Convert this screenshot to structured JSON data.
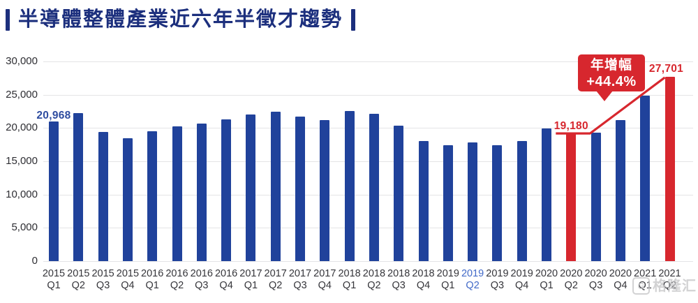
{
  "header": {
    "title": "半導體整體產業近六年半徵才趨勢"
  },
  "chart_data": {
    "type": "bar",
    "title": "半導體整體產業近六年半徵才趨勢",
    "categories": [
      "2015 Q1",
      "2015 Q2",
      "2015 Q3",
      "2015 Q4",
      "2016 Q1",
      "2016 Q2",
      "2016 Q3",
      "2016 Q4",
      "2017 Q1",
      "2017 Q2",
      "2017 Q3",
      "2017 Q4",
      "2018 Q1",
      "2018 Q2",
      "2018 Q3",
      "2018 Q4",
      "2019 Q1",
      "2019 Q2",
      "2019 Q3",
      "2019 Q4",
      "2020 Q1",
      "2020 Q2",
      "2020 Q3",
      "2020 Q4",
      "2021 Q1",
      "2021 Q2"
    ],
    "values": [
      20968,
      22200,
      19450,
      18500,
      19550,
      20250,
      20700,
      21300,
      22000,
      22500,
      21700,
      21200,
      22600,
      22100,
      20350,
      18000,
      17450,
      17850,
      17450,
      18050,
      19950,
      19180,
      19250,
      21200,
      24850,
      27701
    ],
    "red_bar_indices": [
      21,
      25
    ],
    "highlighted_xtick_index": 17,
    "ylim": [
      0,
      30000
    ],
    "ytick_step": 5000,
    "ytick_labels": [
      "0",
      "5,000",
      "10,000",
      "15,000",
      "20,000",
      "25,000",
      "30,000"
    ],
    "grid": "horizontal",
    "xlabel": "",
    "ylabel": "",
    "data_labels": [
      {
        "index": 0,
        "text": "20,968",
        "color": "#2F4DA0",
        "dy": 1
      },
      {
        "index": 21,
        "text": "19,180",
        "color": "#D7272E",
        "dy": -1
      },
      {
        "index": 25,
        "text": "27,701",
        "color": "#D7272E",
        "dy": -2,
        "dx": -5
      }
    ],
    "trend_line": {
      "from_index": 21,
      "from_value": 19180,
      "to_index": 25,
      "to_value": 27701,
      "color": "#D7272E"
    }
  },
  "callout": {
    "line1": "年增幅",
    "line2": "+44.4%"
  },
  "watermark": {
    "logo_letter": "G",
    "text": "格隆汇"
  },
  "colors": {
    "bar_blue": "#20429B",
    "bar_red": "#D7272E",
    "title_navy": "#1C2F7D",
    "axis_text": "#35353A",
    "xtick_highlight": "#4169C8",
    "gridline": "#E4E4E6"
  }
}
